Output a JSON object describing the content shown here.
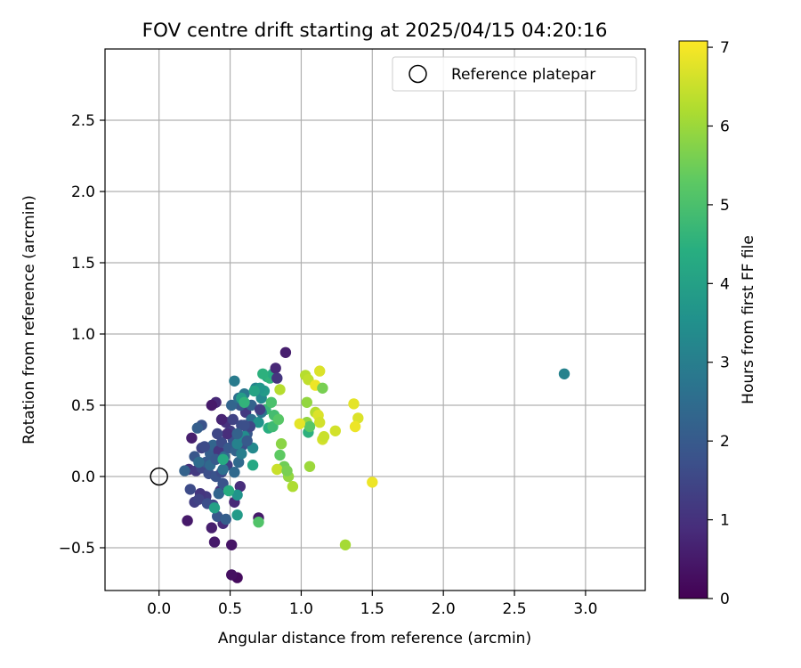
{
  "chart_data": {
    "type": "scatter",
    "title": "FOV centre drift starting at 2025/04/15 04:20:16",
    "xlabel": "Angular distance from reference (arcmin)",
    "ylabel": "Rotation from reference (arcmin)",
    "xlim": [
      -0.38,
      3.42
    ],
    "ylim": [
      -0.8,
      3.0
    ],
    "xticks": [
      0.0,
      0.5,
      1.0,
      1.5,
      2.0,
      2.5,
      3.0
    ],
    "xtick_labels": [
      "0.0",
      "0.5",
      "1.0",
      "1.5",
      "2.0",
      "2.5",
      "3.0"
    ],
    "yticks": [
      -0.5,
      0.0,
      0.5,
      1.0,
      1.5,
      2.0,
      2.5
    ],
    "ytick_labels": [
      "−0.5",
      "0.0",
      "0.5",
      "1.0",
      "1.5",
      "2.0",
      "2.5"
    ],
    "grid": true,
    "legend": {
      "position": "top-right",
      "entries": [
        {
          "label": "Reference platepar",
          "marker": "open-circle"
        }
      ]
    },
    "reference_point": {
      "x": 0.0,
      "y": 0.0
    },
    "colorbar": {
      "label": "Hours from first FF file",
      "colormap": "viridis",
      "range": [
        0,
        7.08
      ],
      "ticks": [
        0,
        1,
        2,
        3,
        4,
        5,
        6,
        7
      ],
      "tick_labels": [
        "0",
        "1",
        "2",
        "3",
        "4",
        "5",
        "6",
        "7"
      ]
    },
    "points": [
      [
        0.55,
        -0.71,
        0.2
      ],
      [
        0.51,
        -0.69,
        0.3
      ],
      [
        0.51,
        -0.48,
        0.4
      ],
      [
        0.39,
        -0.46,
        0.5
      ],
      [
        0.37,
        -0.36,
        0.6
      ],
      [
        0.45,
        -0.33,
        0.9
      ],
      [
        0.7,
        -0.29,
        0.5
      ],
      [
        0.2,
        -0.31,
        0.5
      ],
      [
        0.53,
        -0.18,
        0.8
      ],
      [
        0.57,
        -0.07,
        0.9
      ],
      [
        0.43,
        -0.1,
        1.0
      ],
      [
        0.33,
        -0.14,
        1.2
      ],
      [
        0.29,
        -0.12,
        1.1
      ],
      [
        0.25,
        -0.18,
        1.3
      ],
      [
        0.38,
        -0.2,
        1.5
      ],
      [
        0.22,
        -0.09,
        1.6
      ],
      [
        0.45,
        -0.05,
        1.8
      ],
      [
        0.28,
        -0.16,
        1.4
      ],
      [
        0.34,
        -0.19,
        1.7
      ],
      [
        0.41,
        -0.28,
        1.9
      ],
      [
        0.47,
        -0.3,
        2.1
      ],
      [
        0.42,
        -0.12,
        2.3
      ],
      [
        0.55,
        -0.13,
        3.6
      ],
      [
        0.39,
        -0.22,
        4.0
      ],
      [
        0.55,
        -0.27,
        3.8
      ],
      [
        0.49,
        -0.1,
        4.4
      ],
      [
        0.7,
        -0.32,
        5.1
      ],
      [
        0.21,
        0.05,
        1.0
      ],
      [
        0.26,
        0.04,
        1.2
      ],
      [
        0.3,
        0.06,
        1.5
      ],
      [
        0.35,
        0.02,
        1.7
      ],
      [
        0.4,
        0.0,
        1.8
      ],
      [
        0.44,
        0.03,
        1.6
      ],
      [
        0.48,
        0.08,
        1.3
      ],
      [
        0.18,
        0.04,
        2.2
      ],
      [
        0.25,
        0.14,
        1.9
      ],
      [
        0.3,
        0.2,
        1.4
      ],
      [
        0.33,
        0.1,
        2.0
      ],
      [
        0.36,
        0.16,
        2.1
      ],
      [
        0.38,
        0.22,
        2.3
      ],
      [
        0.42,
        0.18,
        1.1
      ],
      [
        0.44,
        0.24,
        1.6
      ],
      [
        0.46,
        0.14,
        2.5
      ],
      [
        0.49,
        0.2,
        2.0
      ],
      [
        0.52,
        0.26,
        1.8
      ],
      [
        0.54,
        0.18,
        2.2
      ],
      [
        0.56,
        0.1,
        2.4
      ],
      [
        0.59,
        0.22,
        1.7
      ],
      [
        0.62,
        0.3,
        1.9
      ],
      [
        0.5,
        0.32,
        1.3
      ],
      [
        0.47,
        0.38,
        1.0
      ],
      [
        0.52,
        0.4,
        1.4
      ],
      [
        0.58,
        0.36,
        1.6
      ],
      [
        0.61,
        0.45,
        1.2
      ],
      [
        0.65,
        0.4,
        2.6
      ],
      [
        0.57,
        0.5,
        1.9
      ],
      [
        0.51,
        0.5,
        2.3
      ],
      [
        0.56,
        0.55,
        2.6
      ],
      [
        0.6,
        0.58,
        2.8
      ],
      [
        0.65,
        0.5,
        2.2
      ],
      [
        0.68,
        0.62,
        3.1
      ],
      [
        0.53,
        0.67,
        2.9
      ],
      [
        0.44,
        0.4,
        0.7
      ],
      [
        0.48,
        0.3,
        0.9
      ],
      [
        0.4,
        0.52,
        0.8
      ],
      [
        0.37,
        0.5,
        0.5
      ],
      [
        0.3,
        0.36,
        1.8
      ],
      [
        0.27,
        0.34,
        2.1
      ],
      [
        0.23,
        0.27,
        0.6
      ],
      [
        0.41,
        0.3,
        1.5
      ],
      [
        0.32,
        0.21,
        1.6
      ],
      [
        0.36,
        0.08,
        2.4
      ],
      [
        0.28,
        0.1,
        2.5
      ],
      [
        0.4,
        0.12,
        2.0
      ],
      [
        0.45,
        0.05,
        2.6
      ],
      [
        0.53,
        0.03,
        2.4
      ],
      [
        0.58,
        0.16,
        3.0
      ],
      [
        0.66,
        0.2,
        3.3
      ],
      [
        0.55,
        0.23,
        3.1
      ],
      [
        0.6,
        0.28,
        3.4
      ],
      [
        0.63,
        0.35,
        2.9
      ],
      [
        0.7,
        0.38,
        3.6
      ],
      [
        0.72,
        0.55,
        3.3
      ],
      [
        0.74,
        0.6,
        3.8
      ],
      [
        0.76,
        0.7,
        4.2
      ],
      [
        0.78,
        0.69,
        4.6
      ],
      [
        0.8,
        0.72,
        4.3
      ],
      [
        0.71,
        0.62,
        3.7
      ],
      [
        0.67,
        0.6,
        4.1
      ],
      [
        0.73,
        0.72,
        4.5
      ],
      [
        0.75,
        0.47,
        4.7
      ],
      [
        0.79,
        0.52,
        5.0
      ],
      [
        0.81,
        0.43,
        4.9
      ],
      [
        0.77,
        0.34,
        4.4
      ],
      [
        0.8,
        0.35,
        4.8
      ],
      [
        0.84,
        0.4,
        5.2
      ],
      [
        0.66,
        0.08,
        4.2
      ],
      [
        0.45,
        0.12,
        4.3
      ],
      [
        0.58,
        0.55,
        3.9
      ],
      [
        0.6,
        0.52,
        4.6
      ],
      [
        0.72,
        0.45,
        2.7
      ],
      [
        0.89,
        0.87,
        0.6
      ],
      [
        0.82,
        0.76,
        0.8
      ],
      [
        0.83,
        0.69,
        1.1
      ],
      [
        0.71,
        0.47,
        1.3
      ],
      [
        0.64,
        0.35,
        1.5
      ],
      [
        0.6,
        0.36,
        1.7
      ],
      [
        0.62,
        0.25,
        2.0
      ],
      [
        0.55,
        0.3,
        2.2
      ],
      [
        0.85,
        0.15,
        5.3
      ],
      [
        0.88,
        0.07,
        5.5
      ],
      [
        0.86,
        0.23,
        5.8
      ],
      [
        0.91,
        0.0,
        5.9
      ],
      [
        0.94,
        -0.07,
        6.2
      ],
      [
        0.83,
        0.05,
        6.5
      ],
      [
        0.9,
        0.04,
        5.6
      ],
      [
        0.85,
        0.61,
        6.3
      ],
      [
        1.03,
        0.71,
        6.3
      ],
      [
        1.05,
        0.68,
        6.4
      ],
      [
        1.1,
        0.64,
        6.9
      ],
      [
        1.13,
        0.74,
        6.7
      ],
      [
        1.15,
        0.62,
        5.6
      ],
      [
        1.04,
        0.52,
        5.9
      ],
      [
        1.1,
        0.45,
        6.3
      ],
      [
        1.12,
        0.43,
        6.7
      ],
      [
        1.13,
        0.38,
        6.6
      ],
      [
        1.04,
        0.38,
        5.9
      ],
      [
        1.05,
        0.31,
        4.5
      ],
      [
        1.06,
        0.35,
        5.2
      ],
      [
        0.99,
        0.37,
        6.8
      ],
      [
        1.15,
        0.26,
        6.6
      ],
      [
        1.16,
        0.28,
        6.5
      ],
      [
        1.24,
        0.32,
        6.6
      ],
      [
        1.06,
        0.07,
        6.0
      ],
      [
        1.37,
        0.51,
        6.8
      ],
      [
        1.4,
        0.41,
        6.7
      ],
      [
        1.38,
        0.35,
        6.9
      ],
      [
        1.5,
        -0.04,
        6.9
      ],
      [
        1.31,
        -0.48,
        6.1
      ],
      [
        2.85,
        0.72,
        3.1
      ]
    ]
  }
}
